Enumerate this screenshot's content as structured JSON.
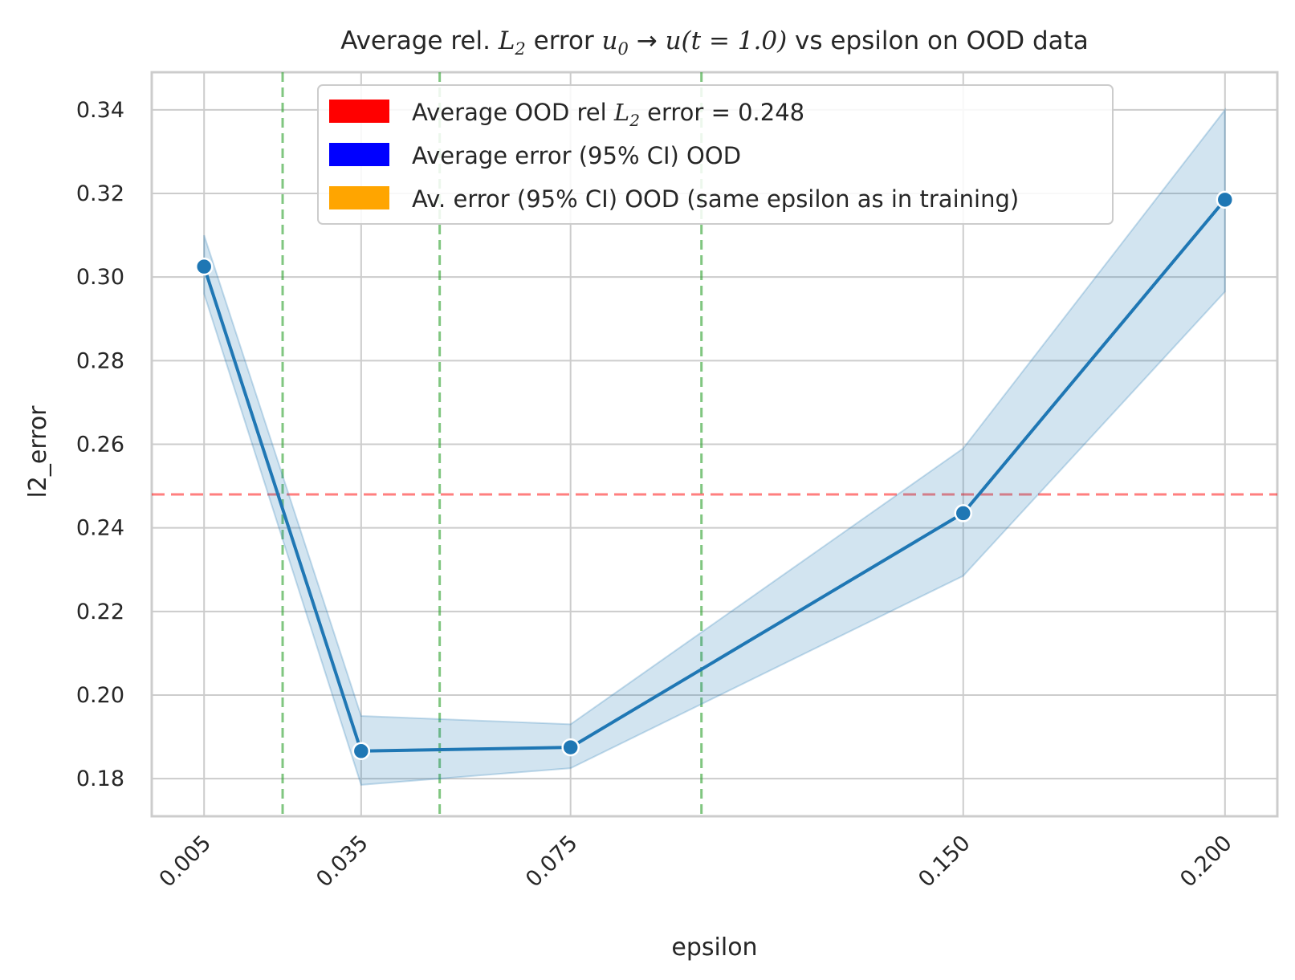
{
  "chart_data": {
    "type": "line",
    "title_parts": {
      "prefix": "Average rel. ",
      "l2_main": "L",
      "l2_sub": "2",
      "middle": " error ",
      "u0_main": "u",
      "u0_sub": "0",
      "arrow": " → ",
      "ut": "u(t = 1.0)",
      "suffix": " vs epsilon on OOD data"
    },
    "xlabel": "epsilon",
    "ylabel": "l2_error",
    "x_categories": [
      "0.005",
      "0.035",
      "0.075",
      "0.150",
      "0.200"
    ],
    "x": [
      0.005,
      0.035,
      0.075,
      0.15,
      0.2
    ],
    "xlim": [
      -0.005,
      0.21
    ],
    "ylim": [
      0.171,
      0.349
    ],
    "yticks": [
      0.18,
      0.2,
      0.22,
      0.24,
      0.26,
      0.28,
      0.3,
      0.32,
      0.34
    ],
    "ytick_labels": [
      "0.18",
      "0.20",
      "0.22",
      "0.24",
      "0.26",
      "0.28",
      "0.30",
      "0.32",
      "0.34"
    ],
    "grid": true,
    "series": [
      {
        "values": [
          0.3025,
          0.1866,
          0.1875,
          0.2435,
          0.3185
        ],
        "ci_lower": [
          0.296,
          0.1785,
          0.1825,
          0.2285,
          0.2965
        ],
        "ci_upper": [
          0.31,
          0.195,
          0.193,
          0.259,
          0.34
        ],
        "color": "#1f77b4"
      }
    ],
    "reference_lines": {
      "horizontal": {
        "y": 0.248,
        "color": "#ff0000"
      },
      "vertical": {
        "x": [
          0.02,
          0.05,
          0.1
        ],
        "color": "#2ca02c"
      }
    },
    "legend": {
      "placement": "top-center",
      "entries": [
        {
          "color": "#ff0000",
          "text_prefix": "Average OOD rel ",
          "text_math_main": "L",
          "text_math_sub": "2",
          "text_suffix": " error = 0.248"
        },
        {
          "color": "#0000ff",
          "text": "Average error (95% CI) OOD"
        },
        {
          "color": "#ffa500",
          "text": "Av. error (95% CI) OOD (same epsilon as in training)"
        }
      ]
    }
  }
}
